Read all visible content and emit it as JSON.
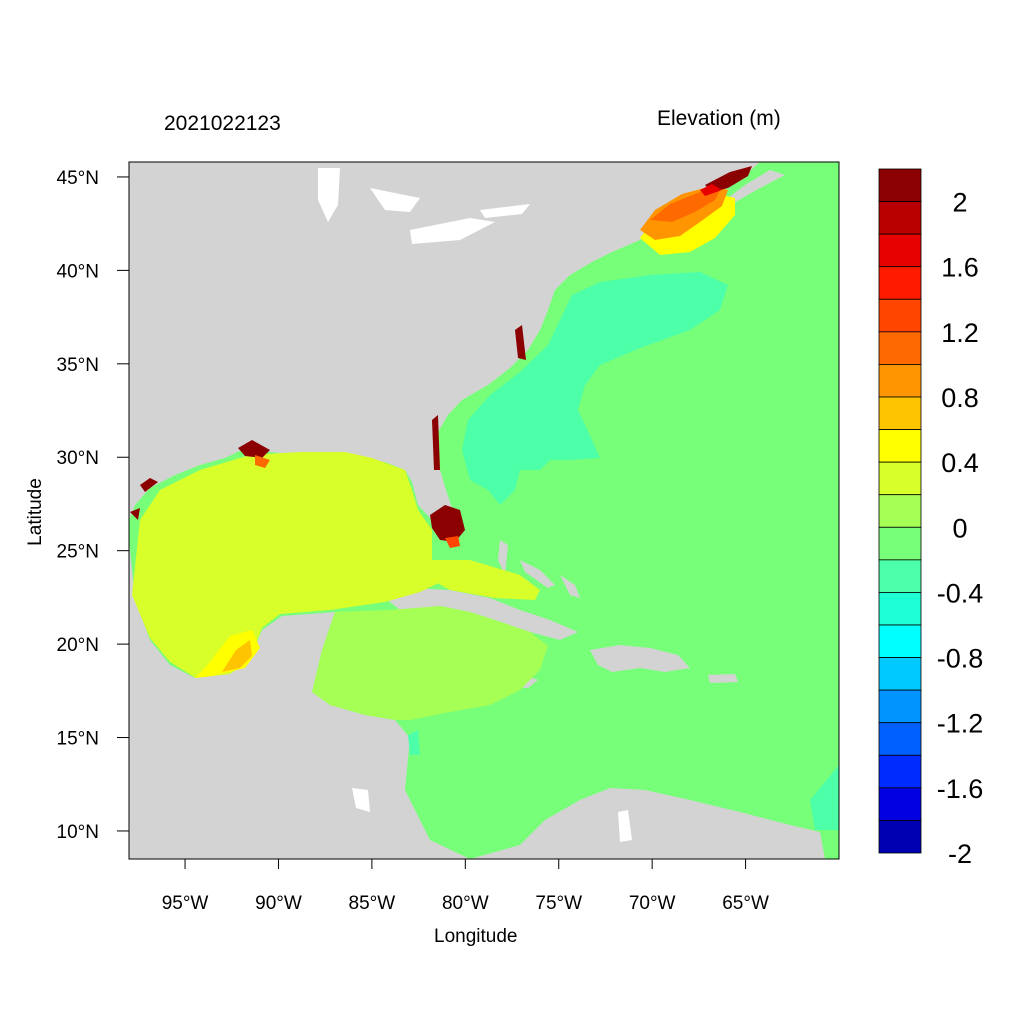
{
  "header": {
    "left_title": "2021022123",
    "right_title": "Elevation (m)"
  },
  "axes": {
    "xlabel": "Longitude",
    "ylabel": "Latitude",
    "x_ticks": [
      "95°W",
      "90°W",
      "85°W",
      "80°W",
      "75°W",
      "70°W",
      "65°W"
    ],
    "x_tick_values": [
      -95,
      -90,
      -85,
      -80,
      -75,
      -70,
      -65
    ],
    "y_ticks": [
      "45°N",
      "40°N",
      "35°N",
      "30°N",
      "25°N",
      "20°N",
      "15°N",
      "10°N"
    ],
    "y_tick_values": [
      45,
      40,
      35,
      30,
      25,
      20,
      15,
      10
    ],
    "lon_range": [
      -98,
      -60
    ],
    "lat_range": [
      8.5,
      45.8
    ]
  },
  "colorbar": {
    "colors": [
      "#8b0000",
      "#b80000",
      "#e60000",
      "#ff1a00",
      "#ff4500",
      "#ff6a00",
      "#ff9500",
      "#ffc400",
      "#ffff00",
      "#d8ff29",
      "#a6ff55",
      "#78ff7a",
      "#4cffa8",
      "#1fffd6",
      "#00ffff",
      "#00c9ff",
      "#0094ff",
      "#0060ff",
      "#002bff",
      "#0000e0",
      "#0000b3"
    ],
    "labels": [
      "2",
      "1.6",
      "1.2",
      "0.8",
      "0.4",
      "0",
      "-0.4",
      "-0.8",
      "-1.2",
      "-1.6",
      "-2"
    ],
    "label_values": [
      2,
      1.6,
      1.2,
      0.8,
      0.4,
      0,
      -0.4,
      -0.8,
      -1.2,
      -1.6,
      -2
    ]
  },
  "map_colors": {
    "land": "#d3d3d3",
    "lakes": "#ffffff",
    "ocean_zero": "#78ff7a",
    "gulf": "#d8ff29",
    "caribbean_west": "#a6ff55",
    "slope_negative": "#4cffa8",
    "coast_surge_high": "#8b0000",
    "gulf_of_maine": "#ff9500",
    "yellow_band": "#ffff00"
  }
}
